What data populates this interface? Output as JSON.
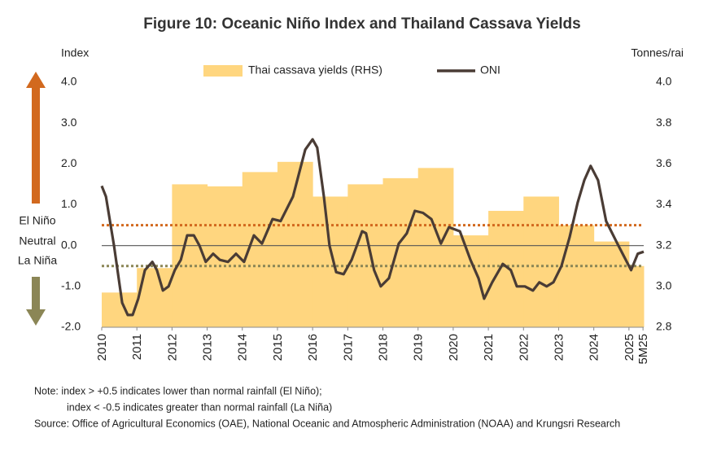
{
  "chart_data": {
    "type": "line",
    "title": "Figure 10: Oceanic Niño Index and Thailand Cassava Yields",
    "ylabel": "Index",
    "y2label": "Tonnes/rai",
    "annotations": [
      "El Niño",
      "Neutral",
      "La Niña"
    ],
    "notes": [
      "Note:  index >  +0.5 indicates lower than normal rainfall (El Niño);",
      "index < -0.5 indicates greater than normal rainfall (La Niña)"
    ],
    "source": "Source: Office of Agricultural Economics (OAE), National Oceanic and Atmospheric Administration (NOAA) and Krungsri Research",
    "legend": "top",
    "xlim": [
      2010,
      2025.42
    ],
    "xticks": [
      2010,
      2011,
      2012,
      2013,
      2014,
      2015,
      2016,
      2017,
      2018,
      2019,
      2020,
      2021,
      2022,
      2023,
      2024,
      2025,
      {
        "value": 2025.4,
        "label": "5M25"
      }
    ],
    "ylim": [
      -2,
      4
    ],
    "yticks": [
      {
        "value": -2,
        "label": "-2.0"
      },
      {
        "value": -1,
        "label": "-1.0"
      },
      {
        "value": 0,
        "label": "0.0"
      },
      {
        "value": 1,
        "label": "1.0"
      },
      {
        "value": 2,
        "label": "2.0"
      },
      {
        "value": 3,
        "label": "3.0"
      },
      {
        "value": 4,
        "label": "4.0"
      }
    ],
    "y2lim": [
      2.8,
      4.0
    ],
    "y2ticks": [
      2.8,
      {
        "value": 3.0,
        "label": "3.0"
      },
      3.2,
      3.4,
      3.6,
      3.8,
      {
        "value": 4.0,
        "label": "4.0"
      }
    ],
    "hlines": [
      {
        "value": 0.5,
        "color": "#d2691e",
        "style": "dotted"
      },
      {
        "value": -0.5,
        "color": "#8b8656",
        "style": "dotted"
      },
      {
        "value": 0,
        "color": "#555555",
        "style": "solid"
      }
    ],
    "series": [
      {
        "name": "Thai cassava yields (RHS)",
        "type": "step-area",
        "axis": "y2",
        "color": "#ffd67f",
        "x": [
          2010,
          2011,
          2012,
          2013,
          2014,
          2015,
          2016,
          2017,
          2018,
          2019,
          2020,
          2021,
          2022,
          2023,
          2024,
          2025
        ],
        "values": [
          2.97,
          3.09,
          3.5,
          3.49,
          3.56,
          3.61,
          3.44,
          3.5,
          3.53,
          3.58,
          3.25,
          3.37,
          3.44,
          3.3,
          3.22,
          3.1
        ]
      },
      {
        "name": "ONI",
        "type": "line",
        "color": "#4a3c35",
        "x": [
          2010,
          2010.12,
          2010.35,
          2010.58,
          2010.74,
          2010.88,
          2011.04,
          2011.23,
          2011.44,
          2011.57,
          2011.74,
          2011.9,
          2012.08,
          2012.25,
          2012.43,
          2012.62,
          2012.78,
          2012.96,
          2013.17,
          2013.36,
          2013.59,
          2013.82,
          2014.05,
          2014.33,
          2014.56,
          2014.86,
          2015.09,
          2015.44,
          2015.79,
          2016,
          2016.13,
          2016.32,
          2016.48,
          2016.67,
          2016.88,
          2017.11,
          2017.41,
          2017.52,
          2017.75,
          2017.94,
          2018.17,
          2018.45,
          2018.68,
          2018.91,
          2019.14,
          2019.38,
          2019.65,
          2019.88,
          2020.19,
          2020.49,
          2020.72,
          2020.88,
          2021.11,
          2021.41,
          2021.64,
          2021.81,
          2022.04,
          2022.27,
          2022.45,
          2022.66,
          2022.85,
          2023.08,
          2023.31,
          2023.54,
          2023.73,
          2023.91,
          2024.12,
          2024.35,
          2024.7,
          2024.88,
          2025.06,
          2025.25,
          2025.42
        ],
        "values": [
          1.46,
          1.2,
          0.0,
          -1.4,
          -1.7,
          -1.7,
          -1.3,
          -0.6,
          -0.4,
          -0.6,
          -1.1,
          -1.0,
          -0.6,
          -0.35,
          0.25,
          0.25,
          0.0,
          -0.4,
          -0.2,
          -0.35,
          -0.4,
          -0.2,
          -0.4,
          0.25,
          0.05,
          0.65,
          0.6,
          1.2,
          2.35,
          2.6,
          2.4,
          1.2,
          0.0,
          -0.65,
          -0.7,
          -0.35,
          0.35,
          0.3,
          -0.6,
          -1.0,
          -0.8,
          0.05,
          0.3,
          0.85,
          0.8,
          0.65,
          0.05,
          0.45,
          0.35,
          -0.35,
          -0.8,
          -1.3,
          -0.9,
          -0.45,
          -0.6,
          -1.0,
          -1.0,
          -1.1,
          -0.9,
          -1.0,
          -0.9,
          -0.5,
          0.2,
          1.05,
          1.6,
          1.95,
          1.6,
          0.6,
          0.0,
          -0.3,
          -0.6,
          -0.2,
          -0.15
        ]
      }
    ]
  }
}
